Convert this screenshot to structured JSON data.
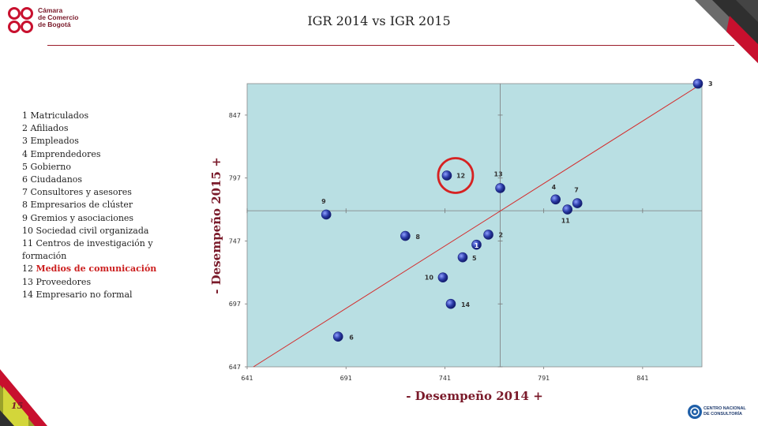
{
  "header": {
    "logo_lines": [
      "Cámara",
      "de Comercio",
      "de Bogotá"
    ],
    "title": "IGR 2014 vs IGR 2015"
  },
  "legend_items": [
    {
      "text": "1 Matriculados",
      "highlight": false
    },
    {
      "text": "2 Afiliados",
      "highlight": false
    },
    {
      "text": "3 Empleados",
      "highlight": false
    },
    {
      "text": "4 Emprendedores",
      "highlight": false
    },
    {
      "text": "5 Gobierno",
      "highlight": false
    },
    {
      "text": "6 Ciudadanos",
      "highlight": false
    },
    {
      "text": "7 Consultores  y asesores",
      "highlight": false
    },
    {
      "text": "8 Empresarios de clúster",
      "highlight": false
    },
    {
      "text": "9 Gremios y asociaciones",
      "highlight": false
    },
    {
      "text": "10 Sociedad civil organizada",
      "highlight": false
    },
    {
      "text": "11 Centros de investigación y",
      "cont": "formación",
      "highlight": false
    },
    {
      "text": "12 ",
      "highlight_text": "Medios de comunicación",
      "highlight": true
    },
    {
      "text": "13 Proveedores",
      "highlight": false
    },
    {
      "text": "14 Empresario no formal",
      "highlight": false
    }
  ],
  "chart_data": {
    "type": "scatter",
    "title": "",
    "xlabel": "- Desempeño 2014 +",
    "ylabel": "- Desempeño 2015 +",
    "xlim": [
      641,
      871
    ],
    "ylim": [
      647,
      872
    ],
    "xticks": [
      641,
      691,
      741,
      791,
      841
    ],
    "yticks": [
      647,
      697,
      747,
      797,
      847
    ],
    "quadrant_x": 769,
    "quadrant_y": 771,
    "diagonal": [
      [
        641,
        647
      ],
      [
        871,
        872
      ]
    ],
    "points": [
      {
        "label": "1",
        "x": 757,
        "y": 744
      },
      {
        "label": "2",
        "x": 763,
        "y": 752
      },
      {
        "label": "3",
        "x": 869,
        "y": 872
      },
      {
        "label": "4",
        "x": 797,
        "y": 780
      },
      {
        "label": "5",
        "x": 750,
        "y": 734
      },
      {
        "label": "6",
        "x": 687,
        "y": 671
      },
      {
        "label": "7",
        "x": 808,
        "y": 777
      },
      {
        "label": "8",
        "x": 721,
        "y": 751
      },
      {
        "label": "9",
        "x": 681,
        "y": 768
      },
      {
        "label": "10",
        "x": 740,
        "y": 718
      },
      {
        "label": "11",
        "x": 803,
        "y": 772
      },
      {
        "label": "12",
        "x": 742,
        "y": 799
      },
      {
        "label": "13",
        "x": 769,
        "y": 789
      },
      {
        "label": "14",
        "x": 744,
        "y": 697
      }
    ],
    "highlighted_point": "12",
    "colors": {
      "plot_bg": "#b9dfe3",
      "point": "#2a3aa6",
      "diagonal": "#d42a2a",
      "highlight_ring": "#d62222",
      "axis_label": "#7a1a2a"
    }
  },
  "footer": {
    "brand_lines": [
      "CENTRO NACIONAL",
      "DE CONSULTORÍA"
    ],
    "page_number": "15"
  }
}
